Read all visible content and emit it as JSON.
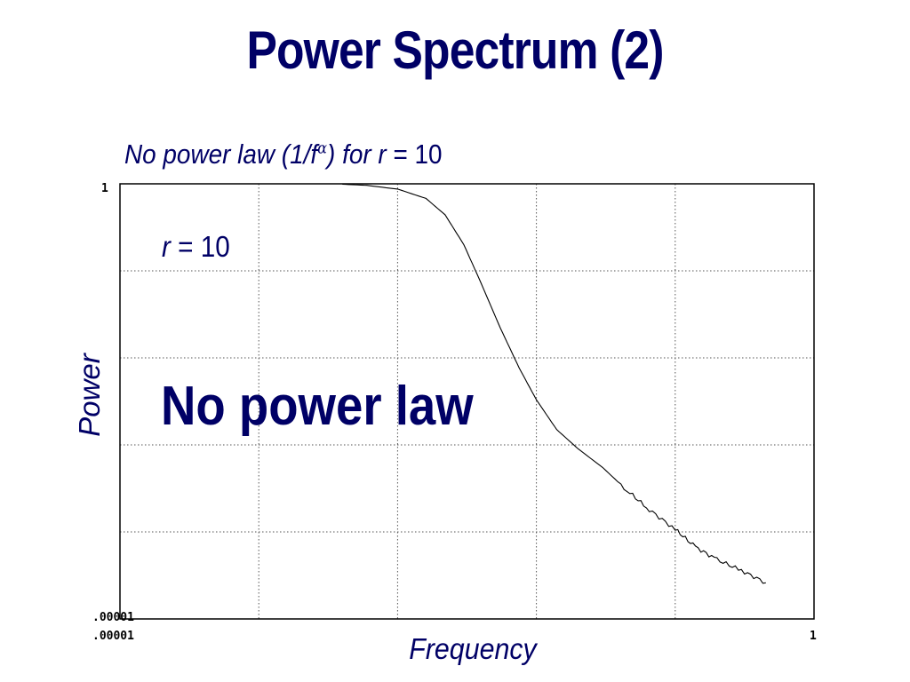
{
  "slide": {
    "title": "Power Spectrum (2)",
    "subtitle_prefix": "No power  law (1/f",
    "subtitle_alpha": "α",
    "subtitle_mid": ") for ",
    "subtitle_r": "r",
    "subtitle_suffix": " = 10",
    "annotation_r": "r",
    "annotation_value": " = 10",
    "annotation_big": "No power law"
  },
  "chart_data": {
    "type": "line",
    "title": "",
    "xlabel": "Frequency",
    "ylabel": "Power",
    "x_scale": "log",
    "y_scale": "log",
    "xlim": [
      1e-05,
      1
    ],
    "ylim": [
      1e-05,
      1
    ],
    "x_tick_labels": [
      ".00001",
      "1"
    ],
    "y_tick_labels": [
      "1",
      ".00001"
    ],
    "grid": true,
    "series": [
      {
        "points": [
          [
            0.0004,
            0.99
          ],
          [
            0.0006,
            0.96
          ],
          [
            0.001,
            0.87
          ],
          [
            0.0016,
            0.68
          ],
          [
            0.0022,
            0.44
          ],
          [
            0.003,
            0.2
          ],
          [
            0.004,
            0.072
          ],
          [
            0.0055,
            0.022
          ],
          [
            0.0075,
            0.0077
          ],
          [
            0.01,
            0.0033
          ],
          [
            0.014,
            0.0015
          ],
          [
            0.02,
            0.0009
          ],
          [
            0.03,
            0.00055
          ],
          [
            0.045,
            0.0003
          ],
          [
            0.065,
            0.00018
          ],
          [
            0.1,
            0.000107
          ],
          [
            0.14,
            6.7e-05
          ],
          [
            0.2,
            4.8e-05
          ],
          [
            0.3,
            3.6e-05
          ],
          [
            0.45,
            2.6e-05
          ]
        ]
      }
    ]
  }
}
